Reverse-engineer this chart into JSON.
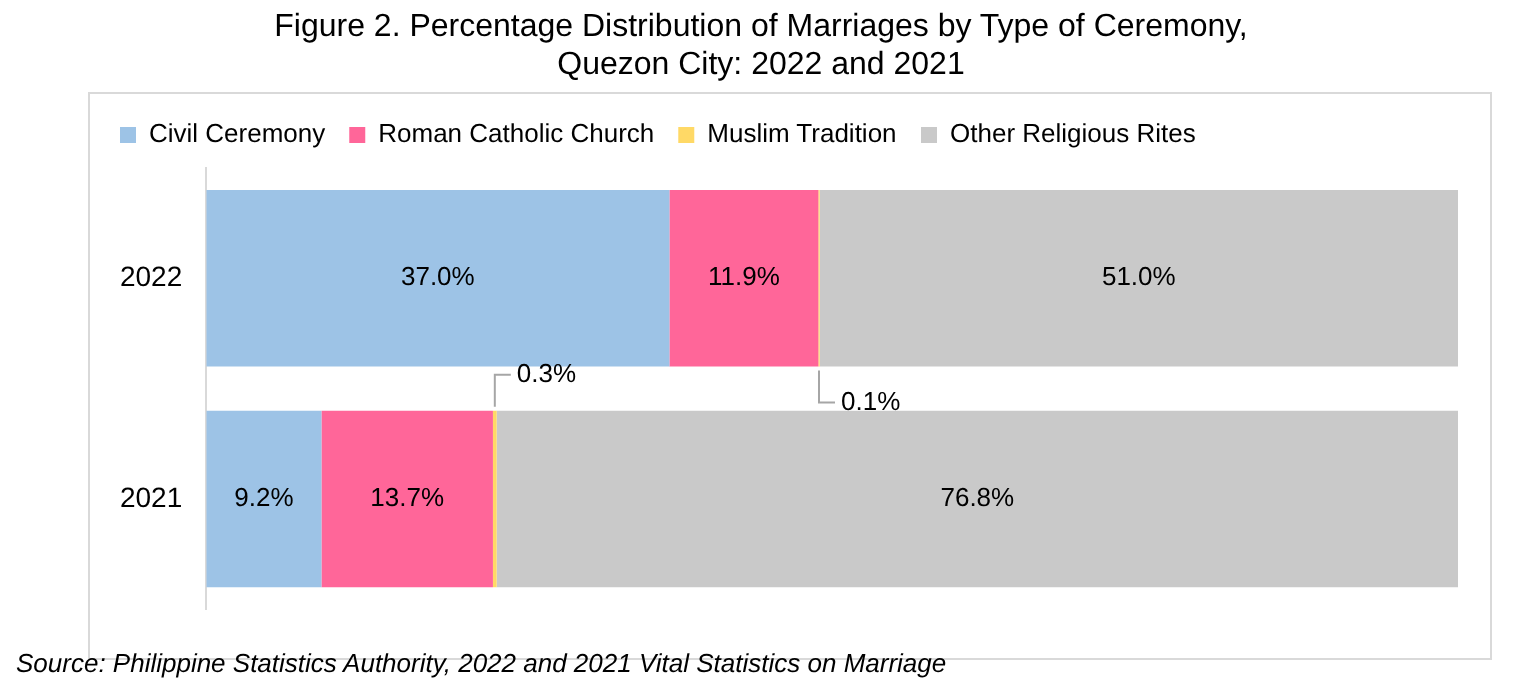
{
  "chart_data": {
    "type": "bar",
    "orientation": "horizontal",
    "stacked": true,
    "title": "Figure 2. Percentage Distribution of Marriages by Type of Ceremony,\nQuezon City:  2022 and 2021",
    "categories": [
      "2022",
      "2021"
    ],
    "series": [
      {
        "name": "Civil Ceremony",
        "color": "#9dc3e6",
        "values": [
          37.0,
          9.2
        ],
        "value_labels": [
          "37.0%",
          "9.2%"
        ]
      },
      {
        "name": "Roman Catholic Church",
        "color": "#ff6699",
        "values": [
          11.9,
          13.7
        ],
        "value_labels": [
          "11.9%",
          "13.7%"
        ]
      },
      {
        "name": "Muslim Tradition",
        "color": "#ffd966",
        "values": [
          0.1,
          0.3
        ],
        "value_labels": [
          "0.1%",
          "0.3%"
        ]
      },
      {
        "name": "Other Religious Rites",
        "color": "#c9c9c9",
        "values": [
          51.0,
          76.8
        ],
        "value_labels": [
          "51.0%",
          "76.8%"
        ]
      }
    ],
    "xlim": [
      0,
      100
    ],
    "tick_labels": "y",
    "legend": "top",
    "grid": false,
    "annotations": [
      "Source: Philippine Statistics Authority, 2022 and 2021 Vital Statistics on Marriage"
    ]
  }
}
